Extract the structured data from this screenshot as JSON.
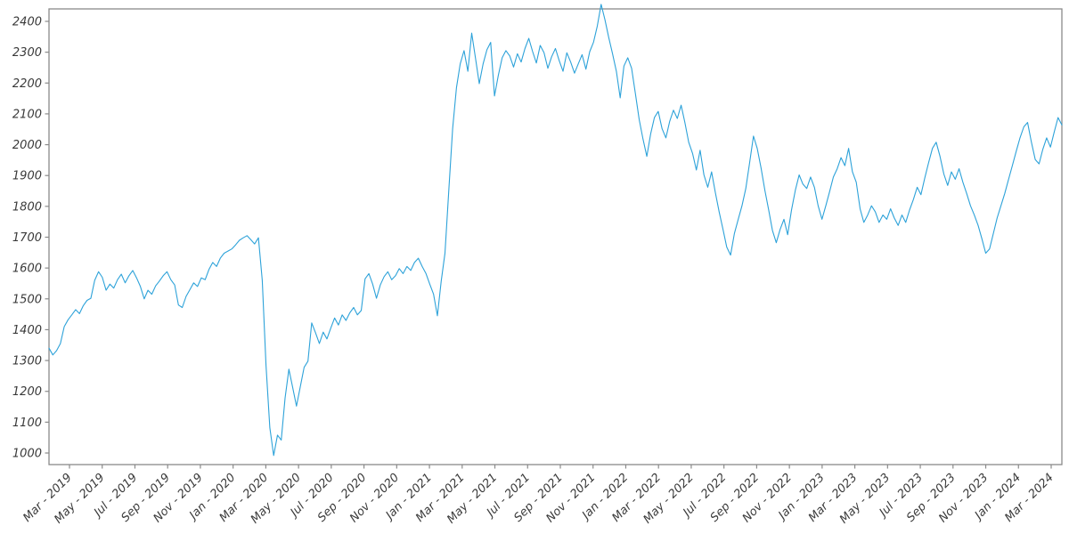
{
  "chart_data": {
    "type": "line",
    "title": "",
    "xlabel": "",
    "ylabel": "",
    "grid": false,
    "legend": "none",
    "x_axis": {
      "tick_labels": [
        "Mar - 2019",
        "May - 2019",
        "Jul - 2019",
        "Sep - 2019",
        "Nov - 2019",
        "Jan - 2020",
        "Mar - 2020",
        "May - 2020",
        "Jul - 2020",
        "Sep - 2020",
        "Nov - 2020",
        "Jan - 2021",
        "Mar - 2021",
        "May - 2021",
        "Jul - 2021",
        "Sep - 2021",
        "Nov - 2021",
        "Jan - 2022",
        "Mar - 2022",
        "May - 2022",
        "Jul - 2022",
        "Sep - 2022",
        "Nov - 2022",
        "Jan - 2023",
        "Mar - 2023",
        "May - 2023",
        "Jul - 2023",
        "Sep - 2023",
        "Nov - 2023",
        "Jan - 2024",
        "Mar - 2024"
      ],
      "tick_interval_months": 2
    },
    "y_axis": {
      "ticks": [
        1000,
        1100,
        1200,
        1300,
        1400,
        1500,
        1600,
        1700,
        1800,
        1900,
        2000,
        2100,
        2200,
        2300,
        2400
      ],
      "tick_min": 1000,
      "tick_max": 2400
    },
    "ylim": [
      971,
      2440
    ],
    "series": [
      {
        "name": "series-1",
        "cadence": "weekly",
        "values": [
          1340,
          1318,
          1332,
          1355,
          1410,
          1432,
          1448,
          1465,
          1452,
          1478,
          1495,
          1502,
          1560,
          1588,
          1570,
          1528,
          1548,
          1535,
          1562,
          1580,
          1552,
          1575,
          1592,
          1568,
          1540,
          1500,
          1528,
          1515,
          1542,
          1558,
          1575,
          1588,
          1562,
          1545,
          1480,
          1472,
          1508,
          1530,
          1552,
          1540,
          1568,
          1562,
          1595,
          1618,
          1605,
          1632,
          1648,
          1655,
          1662,
          1675,
          1690,
          1698,
          1705,
          1692,
          1678,
          1698,
          1560,
          1285,
          1082,
          992,
          1058,
          1042,
          1178,
          1272,
          1212,
          1152,
          1215,
          1278,
          1298,
          1422,
          1390,
          1355,
          1392,
          1370,
          1405,
          1438,
          1415,
          1448,
          1430,
          1455,
          1472,
          1448,
          1462,
          1565,
          1582,
          1548,
          1502,
          1545,
          1572,
          1588,
          1562,
          1575,
          1598,
          1582,
          1605,
          1592,
          1618,
          1632,
          1605,
          1582,
          1548,
          1515,
          1445,
          1558,
          1648,
          1852,
          2052,
          2185,
          2262,
          2305,
          2238,
          2362,
          2282,
          2198,
          2262,
          2308,
          2332,
          2158,
          2225,
          2282,
          2305,
          2288,
          2252,
          2295,
          2268,
          2312,
          2345,
          2302,
          2265,
          2322,
          2298,
          2248,
          2285,
          2312,
          2272,
          2238,
          2298,
          2268,
          2232,
          2262,
          2292,
          2245,
          2302,
          2332,
          2385,
          2455,
          2405,
          2348,
          2295,
          2238,
          2152,
          2255,
          2282,
          2248,
          2165,
          2082,
          2018,
          1962,
          2035,
          2088,
          2108,
          2052,
          2022,
          2075,
          2112,
          2085,
          2128,
          2072,
          2008,
          1972,
          1918,
          1982,
          1902,
          1862,
          1912,
          1845,
          1782,
          1725,
          1668,
          1642,
          1712,
          1758,
          1802,
          1858,
          1942,
          2028,
          1988,
          1925,
          1852,
          1788,
          1722,
          1682,
          1725,
          1758,
          1708,
          1788,
          1852,
          1902,
          1872,
          1858,
          1895,
          1862,
          1802,
          1758,
          1802,
          1848,
          1895,
          1922,
          1958,
          1932,
          1988,
          1912,
          1878,
          1792,
          1748,
          1772,
          1802,
          1782,
          1748,
          1772,
          1758,
          1792,
          1762,
          1738,
          1772,
          1748,
          1788,
          1822,
          1862,
          1838,
          1892,
          1942,
          1988,
          2008,
          1962,
          1905,
          1868,
          1912,
          1888,
          1922,
          1878,
          1842,
          1802,
          1772,
          1738,
          1695,
          1648,
          1662,
          1712,
          1762,
          1802,
          1842,
          1888,
          1932,
          1978,
          2022,
          2058,
          2072,
          2008,
          1952,
          1938,
          1985,
          2022,
          1992,
          2042,
          2088,
          2064
        ]
      }
    ],
    "colors": {
      "line": "#2da2d9",
      "axis": "#8a8a8a",
      "tick_label": "#3a3a3a",
      "background": "#ffffff"
    }
  }
}
